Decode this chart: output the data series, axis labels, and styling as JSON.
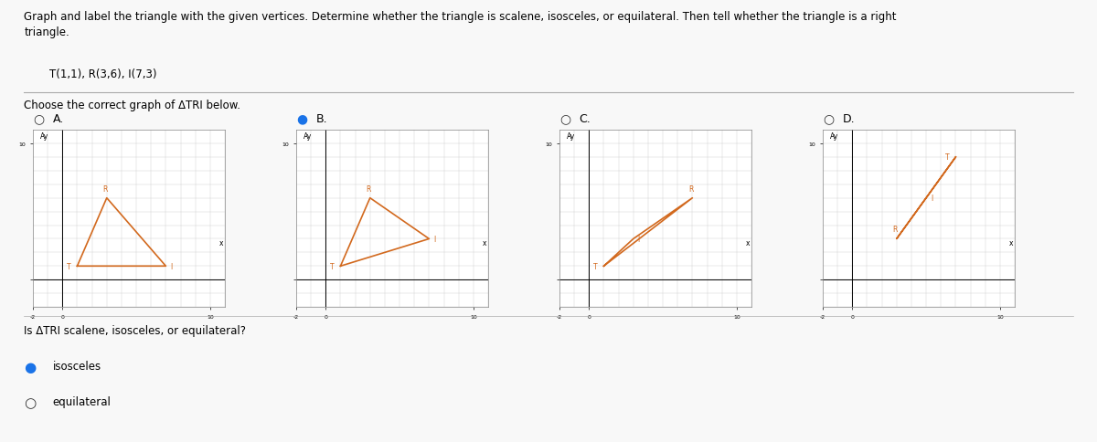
{
  "title_text": "Graph and label the triangle with the given vertices. Determine whether the triangle is scalene, isosceles, or equilateral. Then tell whether the triangle is a right\ntriangle.",
  "vertices_text": "T(1,1), R(3,6), I(7,3)",
  "choose_text": "Choose the correct graph of ΔTRI below.",
  "answer_text": "Is ΔTRI scalene, isosceles, or equilateral?",
  "triangle_color": "#D2691E",
  "triangle_linewidth": 1.2,
  "graph_labels": [
    "A.",
    "B.",
    "C.",
    "D."
  ],
  "graph_selected": [
    false,
    true,
    false,
    false
  ],
  "variants": {
    "A": {
      "T": [
        1,
        1
      ],
      "R": [
        3,
        6
      ],
      "I": [
        7,
        1
      ]
    },
    "B": {
      "T": [
        1,
        1
      ],
      "R": [
        3,
        6
      ],
      "I": [
        7,
        3
      ]
    },
    "C": {
      "T": [
        1,
        1
      ],
      "R": [
        7,
        6
      ],
      "I": [
        3,
        3
      ]
    },
    "D": {
      "T": [
        7,
        9
      ],
      "R": [
        3,
        3
      ],
      "I": [
        5,
        6
      ]
    }
  },
  "variant_order": [
    "A",
    "B",
    "C",
    "D"
  ],
  "options": [
    {
      "text": "isosceles",
      "selected": true
    },
    {
      "text": "equilateral",
      "selected": false
    }
  ],
  "xlim": [
    -2,
    11
  ],
  "ylim": [
    -2,
    11
  ],
  "grid_color": "#cccccc",
  "bg_color": "#f8f8f8",
  "selected_color": "#1a73e8",
  "unselected_color": "#333333"
}
